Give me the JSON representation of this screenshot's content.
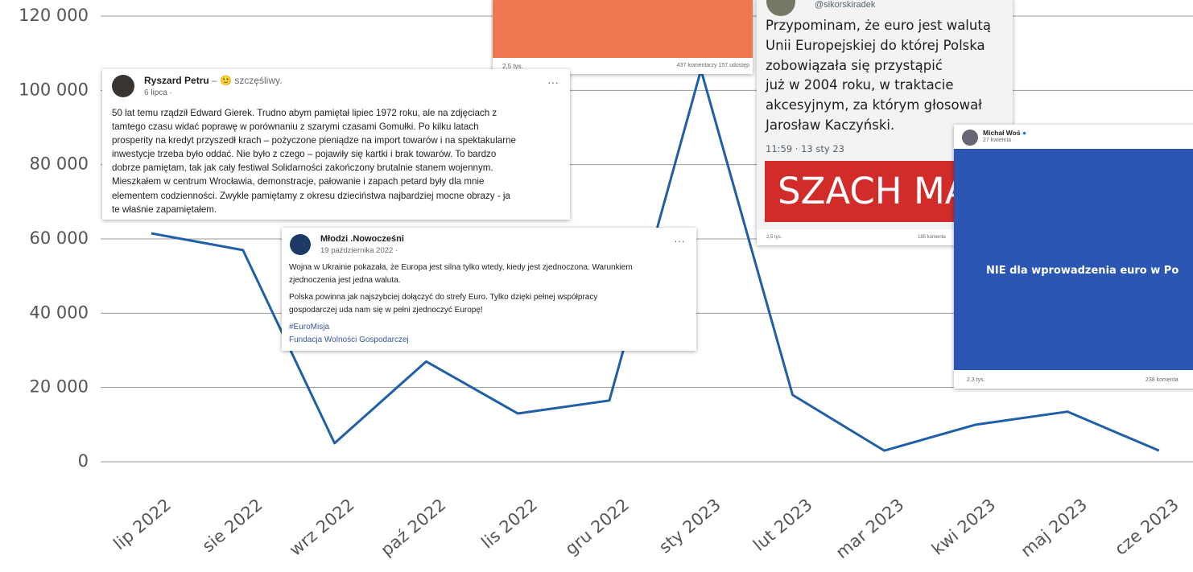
{
  "chart_data": {
    "type": "line",
    "categories": [
      "lip 2022",
      "sie 2022",
      "wrz 2022",
      "paź 2022",
      "lis 2022",
      "gru 2022",
      "sty 2023",
      "lut 2023",
      "mar 2023",
      "kwi 2023",
      "maj 2023",
      "cze 2023"
    ],
    "values": [
      61500,
      57000,
      5000,
      27000,
      13000,
      16500,
      105500,
      18000,
      3000,
      10000,
      13500,
      3000
    ],
    "color": "#1f5fa8",
    "ylim": [
      0,
      120000
    ],
    "yticks": [
      0,
      {
        "value": 20000,
        "label": "20 000"
      },
      {
        "value": 40000,
        "label": "40 000"
      },
      {
        "value": 60000,
        "label": "60 000"
      },
      {
        "value": 80000,
        "label": "80 000"
      },
      {
        "value": 100000,
        "label": "100 000"
      },
      {
        "value": 120000,
        "label": "120 000"
      }
    ],
    "grid": true
  },
  "posts": {
    "orange": {
      "reactions": "2,5 tys.",
      "stats": "437 komentarzy  157 udostęp"
    },
    "petru": {
      "name": "Ryszard Petru",
      "feeling": "– 🙂 szczęśliwy.",
      "date": "6 lipca ·",
      "lines": [
        "50 lat temu rządził Edward Gierek. Trudno abym pamiętał lipiec 1972 roku, ale na zdjęciach z",
        "tamtego czasu widać poprawę w porównaniu z szarymi czasami Gomułki.  Po kilku latach",
        "prosperity na kredyt przyszedł krach – pożyczone pieniądze na import towarów i na spektakularne",
        "inwestycje trzeba było oddać.  Nie było z czego – pojawiły się kartki i brak towarów. To bardzo",
        "dobrze pamiętam, tak jak cały festiwal Solidarności zakończony brutalnie stanem wojennym.",
        "Mieszkałem w centrum Wrocławia, demonstracje, pałowanie i zapach petard były dla mnie",
        "elementem codzienności. Zwykle pamiętamy z okresu dzieciństwa najbardziej mocne obrazy - ja",
        "te właśnie zapamiętałem."
      ]
    },
    "mlodzi": {
      "name": "Młodzi .Nowocześni",
      "date": "19 października 2022 ·",
      "lines": [
        "Wojna w Ukrainie pokazała, że Europa jest silna tylko wtedy, kiedy jest zjednoczona. Warunkiem",
        "zjednoczenia jest jedna waluta."
      ],
      "lines2": [
        "Polska powinna jak najszybciej dołączyć do strefy Euro. Tylko dzięki pełnej współpracy",
        "gospodarczej uda nam się w pełni zjednoczyć Europę!"
      ],
      "tags": [
        "#EuroMisja",
        "Fundacja Wolności Gospodarczej"
      ]
    },
    "sikorski": {
      "handle": "@sikorskiradek",
      "lines": [
        "Przypominam, że euro jest walutą",
        "Unii Europejskiej do której Polska",
        "zobowiązała się przystąpić",
        "już w 2004 roku, w traktacie",
        "akcesyjnym, za którym głosował",
        "Jarosław Kaczyński."
      ],
      "time": "11:59 · 13 sty 23",
      "banner": "SZACH MA",
      "reactions": "2,5 tys.",
      "stats": "185 komenta"
    },
    "wos": {
      "name": "Michał Woś",
      "date": "27 kwietnia ·",
      "slogan": "NIE dla wprowadzenia euro w Po",
      "reactions": "2,3 tys.",
      "stats": "238 komenta"
    }
  }
}
